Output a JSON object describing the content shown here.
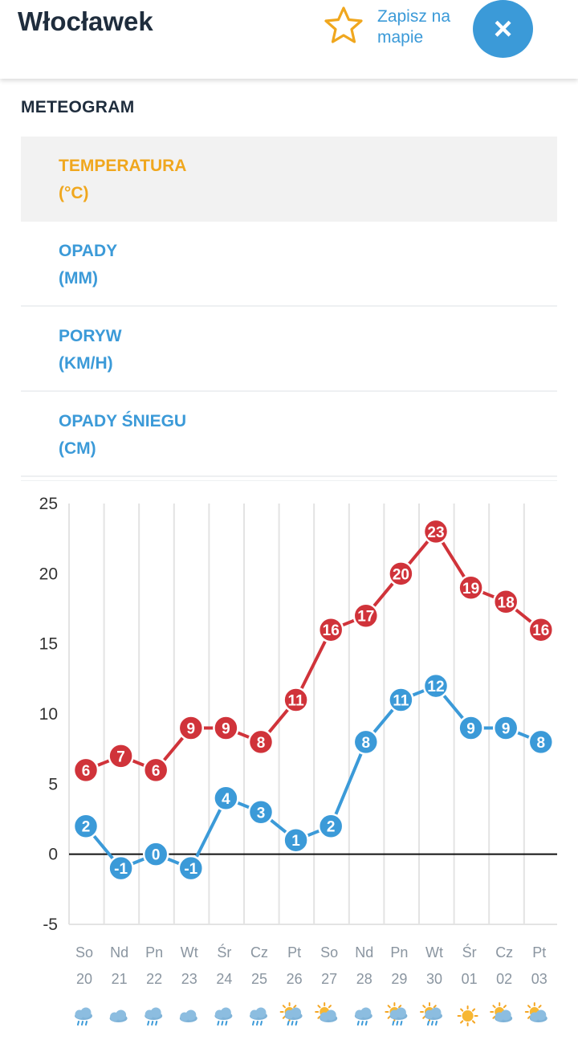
{
  "header": {
    "city": "Włocławek",
    "save_label_line1": "Zapisz na",
    "save_label_line2": "mapie",
    "close_label": "×"
  },
  "section_title": "METEOGRAM",
  "tabs": [
    {
      "label": "TEMPERATURA",
      "unit": "(°C)",
      "active": true
    },
    {
      "label": "OPADY",
      "unit": "(MM)",
      "active": false
    },
    {
      "label": "PORYW",
      "unit": "(KM/H)",
      "active": false
    },
    {
      "label": "OPADY ŚNIEGU",
      "unit": "(CM)",
      "active": false
    }
  ],
  "colors": {
    "accent": "#3b9ad8",
    "active_tab": "#f0a71e",
    "max_series": "#d0333a",
    "min_series": "#3b9ad8"
  },
  "chart_data": {
    "type": "line",
    "x": [
      {
        "day": "So",
        "date": "20",
        "icon": "rain-cloud-icon"
      },
      {
        "day": "Nd",
        "date": "21",
        "icon": "cloud-icon"
      },
      {
        "day": "Pn",
        "date": "22",
        "icon": "rain-cloud-icon"
      },
      {
        "day": "Wt",
        "date": "23",
        "icon": "cloud-icon"
      },
      {
        "day": "Śr",
        "date": "24",
        "icon": "rain-cloud-icon"
      },
      {
        "day": "Cz",
        "date": "25",
        "icon": "rain-cloud-icon"
      },
      {
        "day": "Pt",
        "date": "26",
        "icon": "sun-rain-cloud-icon"
      },
      {
        "day": "So",
        "date": "27",
        "icon": "sun-cloud-icon"
      },
      {
        "day": "Nd",
        "date": "28",
        "icon": "rain-cloud-icon"
      },
      {
        "day": "Pn",
        "date": "29",
        "icon": "sun-rain-cloud-icon"
      },
      {
        "day": "Wt",
        "date": "30",
        "icon": "sun-rain-cloud-icon"
      },
      {
        "day": "Śr",
        "date": "01",
        "icon": "sun-icon"
      },
      {
        "day": "Cz",
        "date": "02",
        "icon": "sun-cloud-icon"
      },
      {
        "day": "Pt",
        "date": "03",
        "icon": "sun-cloud-icon"
      }
    ],
    "series": [
      {
        "values": [
          6,
          7,
          6,
          9,
          9,
          8,
          11,
          16,
          17,
          20,
          23,
          19,
          18,
          16
        ]
      },
      {
        "values": [
          2,
          -1,
          0,
          -1,
          4,
          3,
          1,
          2,
          8,
          11,
          12,
          9,
          9,
          8
        ]
      }
    ],
    "yticks": [
      25,
      20,
      15,
      10,
      5,
      0,
      -5
    ],
    "ylim": [
      -5,
      25
    ],
    "grid": true
  }
}
